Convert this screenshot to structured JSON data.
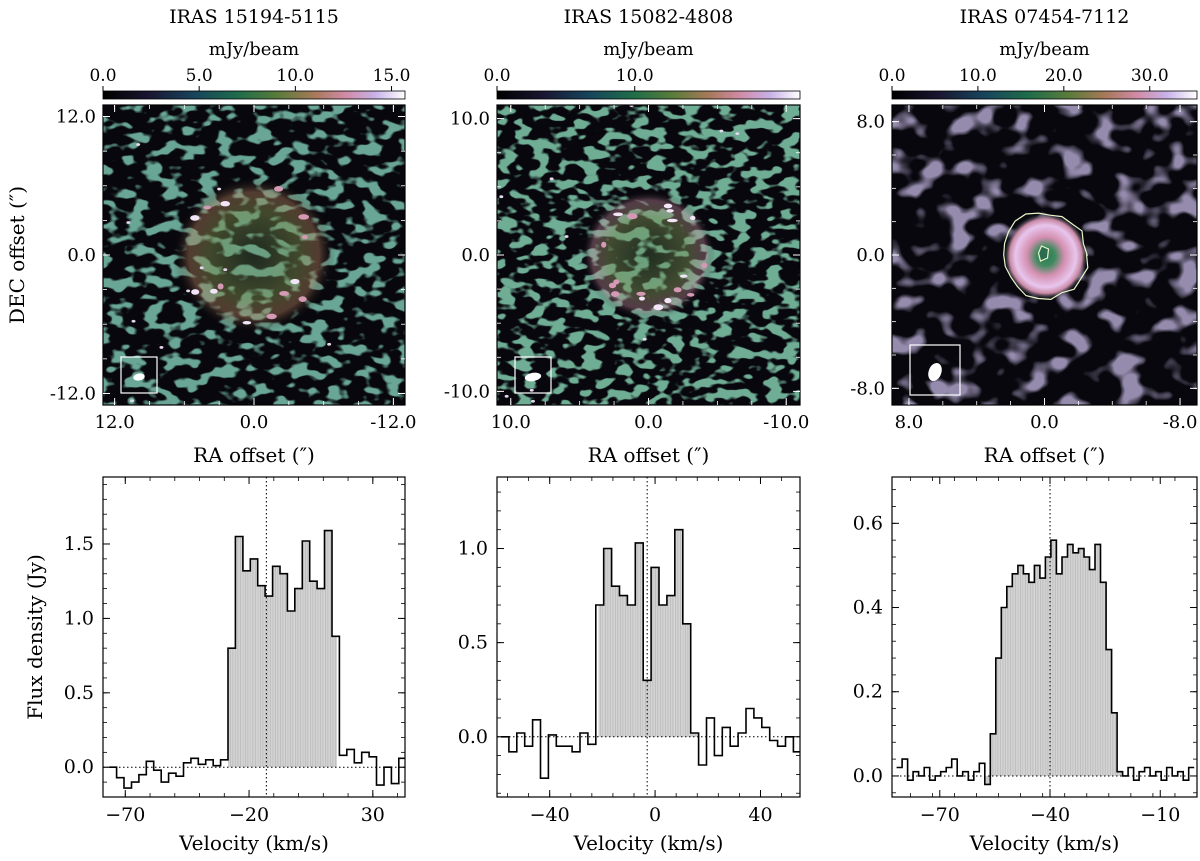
{
  "figure": {
    "shared": {
      "map_xlabel": "RA offset (″)",
      "map_ylabel": "DEC offset (″)",
      "spec_xlabel": "Velocity (km/s)",
      "spec_ylabel": "Flux density (Jy)",
      "colorbar_label": "mJy/beam"
    }
  },
  "chart_data": [
    {
      "type": "heatmap",
      "title": "IRAS 15194-5115",
      "xlabel": "RA offset (″)",
      "ylabel": "DEC offset (″)",
      "colorbar_label": "mJy/beam",
      "colorbar_ticks": [
        "0.0",
        "5.0",
        "10.0",
        "15.0"
      ],
      "colorbar_range": [
        0,
        15.7
      ],
      "xlim": [
        13.0,
        -13.0
      ],
      "ylim": [
        -13.0,
        13.0
      ],
      "xticks": [
        "12.0",
        "0.0",
        "-12.0"
      ],
      "yticks": [
        "12.0",
        "0.0",
        "-12.0"
      ],
      "morphology": "faint clumpy shell, radius ~5 arcsec",
      "beam": {
        "major": 1.0,
        "minor": 0.6,
        "pa_deg": 80
      }
    },
    {
      "type": "heatmap",
      "title": "IRAS 15082-4808",
      "xlabel": "RA offset (″)",
      "ylabel": "DEC offset (″)",
      "colorbar_label": "mJy/beam",
      "colorbar_ticks": [
        "0.0",
        "10.0"
      ],
      "colorbar_range": [
        0,
        22
      ],
      "xlim": [
        11.0,
        -11.0
      ],
      "ylim": [
        -11.0,
        11.0
      ],
      "xticks": [
        "10.0",
        "0.0",
        "-10.0"
      ],
      "yticks": [
        "10.0",
        "0.0",
        "-10.0"
      ],
      "morphology": "clumpy shell, radius ~3.5 arcsec",
      "beam": {
        "major": 1.2,
        "minor": 0.6,
        "pa_deg": 80
      }
    },
    {
      "type": "heatmap",
      "title": "IRAS 07454-7112",
      "xlabel": "RA offset (″)",
      "ylabel": "DEC offset (″)",
      "colorbar_label": "mJy/beam",
      "colorbar_ticks": [
        "0.0",
        "10.0",
        "20.0",
        "30.0"
      ],
      "colorbar_range": [
        0,
        35.5
      ],
      "xlim": [
        9.0,
        -9.0
      ],
      "ylim": [
        -9.0,
        9.0
      ],
      "xticks": [
        "8.0",
        "0.0",
        "-8.0"
      ],
      "yticks": [
        "8.0",
        "0.0",
        "-8.0"
      ],
      "morphology": "bright ring, radius ~2 arcsec, with contour",
      "beam": {
        "major": 1.1,
        "minor": 0.75,
        "pa_deg": 20
      }
    },
    {
      "type": "line",
      "style": "step",
      "xlabel": "Velocity (km/s)",
      "ylabel": "Flux density (Jy)",
      "xlim": [
        -79,
        43
      ],
      "ylim": [
        -0.2,
        1.95
      ],
      "xticks": [
        -70,
        -20,
        30
      ],
      "yticks": [
        0.0,
        0.5,
        1.0,
        1.5
      ],
      "yticklabels": [
        "0.0",
        "0.5",
        "1.0",
        "1.5"
      ],
      "systemic_velocity": -13,
      "shaded_range": [
        -28.5,
        15.5
      ],
      "bin_width": 3,
      "x": [
        -75,
        -72,
        -69,
        -66,
        -63,
        -60,
        -57,
        -54,
        -51,
        -48,
        -45,
        -42,
        -39,
        -36,
        -33,
        -30,
        -27,
        -24,
        -21,
        -18,
        -15,
        -12,
        -9,
        -6,
        -3,
        0,
        3,
        6,
        9,
        12,
        15,
        18,
        21,
        24,
        27,
        30,
        33,
        36,
        39,
        42
      ],
      "y": [
        0.0,
        -0.07,
        -0.14,
        -0.1,
        -0.05,
        0.04,
        -0.02,
        -0.1,
        -0.04,
        -0.06,
        0.03,
        0.06,
        0.02,
        0.05,
        0.01,
        0.05,
        0.8,
        1.55,
        1.32,
        1.4,
        1.22,
        1.15,
        1.35,
        1.3,
        1.05,
        1.2,
        1.52,
        1.25,
        1.2,
        1.59,
        0.88,
        0.08,
        0.12,
        0.03,
        0.1,
        0.07,
        -0.12,
        0.0,
        -0.11,
        0.06
      ]
    },
    {
      "type": "line",
      "style": "step",
      "xlabel": "Velocity (km/s)",
      "ylabel": "Flux density (Jy)",
      "xlim": [
        -60,
        55
      ],
      "ylim": [
        -0.32,
        1.38
      ],
      "xticks": [
        -40,
        0,
        40
      ],
      "yticks": [
        0.0,
        0.5,
        1.0
      ],
      "yticklabels": [
        "0.0",
        "0.5",
        "1.0"
      ],
      "systemic_velocity": -3,
      "shaded_range": [
        -21.5,
        16.5
      ],
      "bin_width": 3,
      "x": [
        -57,
        -54,
        -51,
        -48,
        -45,
        -42,
        -39,
        -36,
        -33,
        -30,
        -27,
        -24,
        -21,
        -18,
        -15,
        -12,
        -9,
        -6,
        -3,
        0,
        3,
        6,
        9,
        12,
        15,
        18,
        21,
        24,
        27,
        30,
        33,
        36,
        39,
        42,
        45,
        48,
        51,
        54
      ],
      "y": [
        0.0,
        -0.08,
        0.02,
        -0.05,
        0.09,
        -0.22,
        0.01,
        -0.05,
        -0.05,
        -0.08,
        0.02,
        -0.04,
        0.7,
        1.0,
        0.8,
        0.75,
        0.7,
        1.03,
        0.3,
        0.9,
        0.7,
        0.75,
        1.1,
        0.6,
        0.02,
        -0.15,
        0.1,
        -0.1,
        0.05,
        -0.05,
        0.02,
        0.15,
        0.1,
        0.05,
        -0.02,
        -0.05,
        0.0,
        -0.08
      ]
    },
    {
      "type": "line",
      "style": "step",
      "xlabel": "Velocity (km/s)",
      "ylabel": "",
      "xlim": [
        -83,
        0
      ],
      "ylim": [
        -0.05,
        0.71
      ],
      "xticks": [
        -70,
        -40,
        -10
      ],
      "yticks": [
        0.0,
        0.2,
        0.4,
        0.6
      ],
      "yticklabels": [
        "0.0",
        "0.2",
        "0.4",
        "0.6"
      ],
      "systemic_velocity": -40,
      "shaded_range": [
        -57.5,
        -20
      ],
      "bin_width": 1.5,
      "x": [
        -81.0,
        -79.5,
        -78.0,
        -76.5,
        -75.0,
        -73.5,
        -72.0,
        -70.5,
        -69.0,
        -67.5,
        -66.0,
        -64.5,
        -63.0,
        -61.5,
        -60.0,
        -58.5,
        -57.0,
        -55.5,
        -54.0,
        -52.5,
        -51.0,
        -49.5,
        -48.0,
        -46.5,
        -45.0,
        -43.5,
        -42.0,
        -40.5,
        -39.0,
        -37.5,
        -36.0,
        -34.5,
        -33.0,
        -31.5,
        -30.0,
        -28.5,
        -27.0,
        -25.5,
        -24.0,
        -22.5,
        -21.0,
        -19.5,
        -18.0,
        -16.5,
        -15.0,
        -13.5,
        -12.0,
        -10.5,
        -9.0,
        -7.5,
        -6.0,
        -4.5,
        -3.0,
        -1.5
      ],
      "y": [
        0.02,
        0.04,
        -0.01,
        0.01,
        0.0,
        0.02,
        -0.01,
        0.0,
        0.01,
        0.02,
        0.04,
        0.0,
        0.01,
        -0.01,
        0.01,
        0.03,
        -0.02,
        0.1,
        0.28,
        0.4,
        0.45,
        0.48,
        0.5,
        0.48,
        0.46,
        0.5,
        0.47,
        0.52,
        0.56,
        0.48,
        0.52,
        0.55,
        0.53,
        0.54,
        0.52,
        0.49,
        0.55,
        0.46,
        0.3,
        0.15,
        0.01,
        0.0,
        0.02,
        -0.01,
        0.01,
        0.02,
        0.0,
        0.01,
        -0.01,
        0.02,
        0.0,
        0.01,
        -0.01,
        0.02
      ]
    }
  ]
}
